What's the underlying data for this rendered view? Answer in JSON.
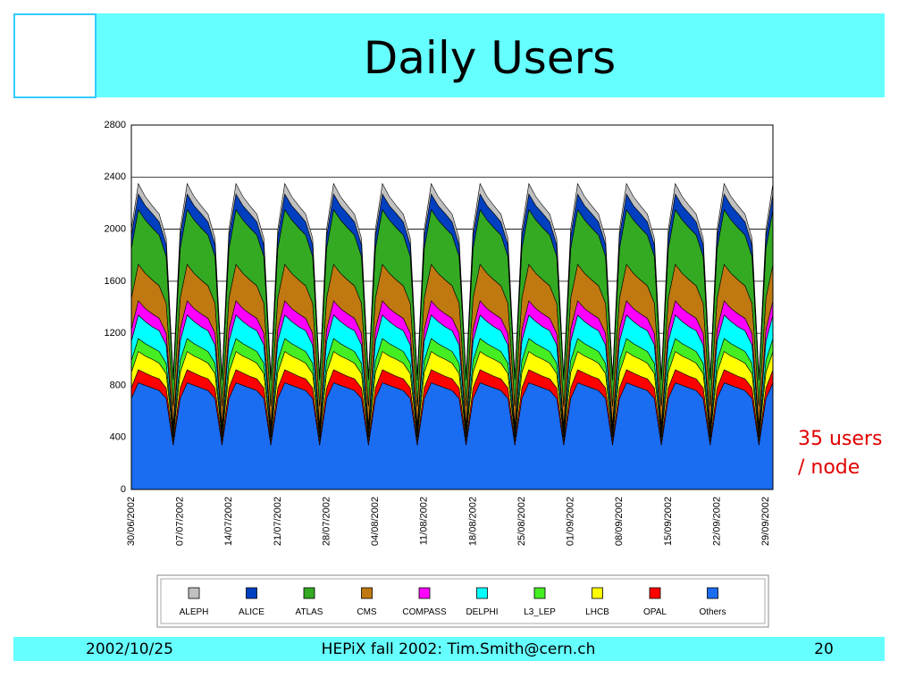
{
  "slide": {
    "title": "Daily Users",
    "annotation": [
      "35 users",
      "/ node"
    ],
    "footer": {
      "date": "2002/10/25",
      "event": "HEPiX fall 2002: Tim.Smith@cern.ch",
      "page": "20"
    }
  },
  "chart_data": {
    "type": "stacked_area",
    "categories": [
      "30/06/2002",
      null,
      null,
      null,
      null,
      null,
      null,
      "07/07/2002",
      null,
      null,
      null,
      null,
      null,
      null,
      "14/07/2002",
      null,
      null,
      null,
      null,
      null,
      null,
      "21/07/2002",
      null,
      null,
      null,
      null,
      null,
      null,
      "28/07/2002",
      null,
      null,
      null,
      null,
      null,
      null,
      "04/08/2002",
      null,
      null,
      null,
      null,
      null,
      null,
      "11/08/2002",
      null,
      null,
      null,
      null,
      null,
      null,
      "18/08/2002",
      null,
      null,
      null,
      null,
      null,
      null,
      "25/08/2002",
      null,
      null,
      null,
      null,
      null,
      null,
      "01/09/2002",
      null,
      null,
      null,
      null,
      null,
      null,
      "08/09/2002",
      null,
      null,
      null,
      null,
      null,
      null,
      "15/09/2002",
      null,
      null,
      null,
      null,
      null,
      null,
      "22/09/2002",
      null,
      null,
      null,
      null,
      null,
      null,
      "29/09/2002",
      null
    ],
    "ylim": [
      0,
      2800
    ],
    "yticks": [
      0,
      400,
      800,
      1200,
      1600,
      2000,
      2400,
      2800
    ],
    "grid": true,
    "series": [
      {
        "name": "ALEPH",
        "color": "#c0c0c0",
        "values": [
          50,
          80,
          70,
          60,
          60,
          50,
          10,
          50,
          80,
          70,
          60,
          60,
          50,
          10,
          50,
          80,
          70,
          60,
          60,
          50,
          10,
          50,
          80,
          70,
          60,
          60,
          50,
          10,
          50,
          80,
          70,
          60,
          60,
          50,
          10,
          50,
          80,
          70,
          60,
          60,
          50,
          10,
          50,
          80,
          70,
          60,
          60,
          50,
          10,
          50,
          80,
          70,
          60,
          60,
          50,
          10,
          50,
          80,
          70,
          60,
          60,
          50,
          10,
          50,
          80,
          70,
          60,
          60,
          50,
          10,
          50,
          80,
          70,
          60,
          60,
          50,
          10,
          50,
          80,
          70,
          60,
          60,
          50,
          10,
          50,
          80,
          70,
          60,
          60,
          50,
          10,
          50,
          80
        ]
      },
      {
        "name": "ALICE",
        "color": "#0040c0",
        "values": [
          100,
          120,
          110,
          110,
          100,
          90,
          20,
          100,
          120,
          110,
          110,
          100,
          90,
          20,
          100,
          120,
          110,
          110,
          100,
          90,
          20,
          100,
          120,
          110,
          110,
          100,
          90,
          20,
          100,
          120,
          110,
          110,
          100,
          90,
          20,
          100,
          120,
          110,
          110,
          100,
          90,
          20,
          100,
          120,
          110,
          110,
          100,
          90,
          20,
          100,
          120,
          110,
          110,
          100,
          90,
          20,
          100,
          120,
          110,
          110,
          100,
          90,
          20,
          100,
          120,
          110,
          110,
          100,
          90,
          20,
          100,
          120,
          110,
          110,
          100,
          90,
          20,
          100,
          120,
          110,
          110,
          100,
          90,
          20,
          100,
          120,
          110,
          110,
          100,
          90,
          20,
          100,
          120
        ]
      },
      {
        "name": "ATLAS",
        "color": "#33aa22",
        "values": [
          380,
          420,
          410,
          400,
          390,
          360,
          200,
          380,
          420,
          410,
          400,
          390,
          360,
          200,
          380,
          420,
          410,
          400,
          390,
          360,
          200,
          380,
          420,
          410,
          400,
          390,
          360,
          200,
          380,
          420,
          410,
          400,
          390,
          360,
          200,
          380,
          420,
          410,
          400,
          390,
          360,
          200,
          380,
          420,
          410,
          400,
          390,
          360,
          200,
          380,
          420,
          410,
          400,
          390,
          360,
          200,
          380,
          420,
          410,
          400,
          390,
          360,
          200,
          380,
          420,
          410,
          400,
          390,
          360,
          200,
          380,
          420,
          410,
          400,
          390,
          360,
          200,
          380,
          420,
          410,
          400,
          390,
          360,
          200,
          380,
          420,
          410,
          400,
          390,
          360,
          200,
          380,
          420
        ]
      },
      {
        "name": "CMS",
        "color": "#c07810",
        "values": [
          240,
          280,
          270,
          260,
          250,
          230,
          150,
          240,
          280,
          270,
          260,
          250,
          230,
          150,
          240,
          280,
          270,
          260,
          250,
          230,
          150,
          240,
          280,
          270,
          260,
          250,
          230,
          150,
          240,
          280,
          270,
          260,
          250,
          230,
          150,
          240,
          280,
          270,
          260,
          250,
          230,
          150,
          240,
          280,
          270,
          260,
          250,
          230,
          150,
          240,
          280,
          270,
          260,
          250,
          230,
          150,
          240,
          280,
          270,
          260,
          250,
          230,
          150,
          240,
          280,
          270,
          260,
          250,
          230,
          150,
          240,
          280,
          270,
          260,
          250,
          230,
          150,
          240,
          280,
          270,
          260,
          250,
          230,
          150,
          240,
          280,
          270,
          260,
          250,
          230,
          150,
          240,
          280
        ]
      },
      {
        "name": "COMPASS",
        "color": "#ff00ff",
        "values": [
          90,
          110,
          100,
          100,
          95,
          90,
          30,
          90,
          110,
          100,
          100,
          95,
          90,
          30,
          90,
          110,
          100,
          100,
          95,
          90,
          30,
          90,
          110,
          100,
          100,
          95,
          90,
          30,
          90,
          110,
          100,
          100,
          95,
          90,
          30,
          90,
          110,
          100,
          100,
          95,
          90,
          30,
          90,
          110,
          100,
          100,
          95,
          90,
          30,
          90,
          110,
          100,
          100,
          95,
          90,
          30,
          90,
          110,
          100,
          100,
          95,
          90,
          30,
          90,
          110,
          100,
          100,
          95,
          90,
          30,
          90,
          110,
          100,
          100,
          95,
          90,
          30,
          90,
          110,
          100,
          100,
          95,
          90,
          30,
          90,
          110,
          100,
          100,
          95,
          90,
          30,
          90,
          110
        ]
      },
      {
        "name": "DELPHI",
        "color": "#00ffff",
        "values": [
          150,
          180,
          170,
          160,
          160,
          140,
          30,
          150,
          180,
          170,
          160,
          160,
          140,
          30,
          150,
          180,
          170,
          160,
          160,
          140,
          30,
          150,
          180,
          170,
          160,
          160,
          140,
          30,
          150,
          180,
          170,
          160,
          160,
          140,
          30,
          150,
          180,
          170,
          160,
          160,
          140,
          30,
          150,
          180,
          170,
          160,
          160,
          140,
          30,
          150,
          180,
          170,
          160,
          160,
          140,
          30,
          150,
          180,
          170,
          160,
          160,
          140,
          30,
          150,
          180,
          170,
          160,
          160,
          140,
          30,
          150,
          180,
          170,
          160,
          160,
          140,
          30,
          150,
          180,
          170,
          160,
          160,
          140,
          30,
          150,
          180,
          170,
          160,
          160,
          140,
          30,
          150,
          180
        ]
      },
      {
        "name": "L3_LEP",
        "color": "#44ee22",
        "values": [
          90,
          100,
          95,
          90,
          90,
          80,
          30,
          90,
          100,
          95,
          90,
          90,
          80,
          30,
          90,
          100,
          95,
          90,
          90,
          80,
          30,
          90,
          100,
          95,
          90,
          90,
          80,
          30,
          90,
          100,
          95,
          90,
          90,
          80,
          30,
          90,
          100,
          95,
          90,
          90,
          80,
          30,
          90,
          100,
          95,
          90,
          90,
          80,
          30,
          90,
          100,
          95,
          90,
          90,
          80,
          30,
          90,
          100,
          95,
          90,
          90,
          80,
          30,
          90,
          100,
          95,
          90,
          90,
          80,
          30,
          90,
          100,
          95,
          90,
          90,
          80,
          30,
          90,
          100,
          95,
          90,
          90,
          80,
          30,
          90,
          100,
          95,
          90,
          90,
          80,
          30,
          90,
          100
        ]
      },
      {
        "name": "LHCB",
        "color": "#ffff00",
        "values": [
          120,
          140,
          130,
          130,
          120,
          110,
          30,
          120,
          140,
          130,
          130,
          120,
          110,
          30,
          120,
          140,
          130,
          130,
          120,
          110,
          30,
          120,
          140,
          130,
          130,
          120,
          110,
          30,
          120,
          140,
          130,
          130,
          120,
          110,
          30,
          120,
          140,
          130,
          130,
          120,
          110,
          30,
          120,
          140,
          130,
          130,
          120,
          110,
          30,
          120,
          140,
          130,
          130,
          120,
          110,
          30,
          120,
          140,
          130,
          130,
          120,
          110,
          30,
          120,
          140,
          130,
          130,
          120,
          110,
          30,
          120,
          140,
          130,
          130,
          120,
          110,
          30,
          120,
          140,
          130,
          130,
          120,
          110,
          30,
          120,
          140,
          130,
          130,
          120,
          110,
          30,
          120,
          140
        ]
      },
      {
        "name": "OPAL",
        "color": "#ff0000",
        "values": [
          80,
          100,
          95,
          90,
          90,
          80,
          30,
          80,
          100,
          95,
          90,
          90,
          80,
          30,
          80,
          100,
          95,
          90,
          90,
          80,
          30,
          80,
          100,
          95,
          90,
          90,
          80,
          30,
          80,
          100,
          95,
          90,
          90,
          80,
          30,
          80,
          100,
          95,
          90,
          90,
          80,
          30,
          80,
          100,
          95,
          90,
          90,
          80,
          30,
          80,
          100,
          95,
          90,
          90,
          80,
          30,
          80,
          100,
          95,
          90,
          90,
          80,
          30,
          80,
          100,
          95,
          90,
          90,
          80,
          30,
          80,
          100,
          95,
          90,
          90,
          80,
          30,
          80,
          100,
          95,
          90,
          90,
          80,
          30,
          80,
          100,
          95,
          90,
          90,
          80,
          30,
          80,
          100
        ]
      },
      {
        "name": "Others",
        "color": "#1a6cf0",
        "values": [
          700,
          820,
          800,
          780,
          760,
          700,
          340,
          700,
          820,
          800,
          780,
          760,
          700,
          340,
          700,
          820,
          800,
          780,
          760,
          700,
          340,
          700,
          820,
          800,
          780,
          760,
          700,
          340,
          700,
          820,
          800,
          780,
          760,
          700,
          340,
          700,
          820,
          800,
          780,
          760,
          700,
          340,
          700,
          820,
          800,
          780,
          760,
          700,
          340,
          700,
          820,
          800,
          780,
          760,
          700,
          340,
          700,
          820,
          800,
          780,
          760,
          700,
          340,
          700,
          820,
          800,
          780,
          760,
          700,
          340,
          700,
          820,
          800,
          780,
          760,
          700,
          340,
          700,
          820,
          800,
          780,
          760,
          700,
          340,
          700,
          820,
          800,
          780,
          760,
          700,
          340,
          700,
          820
        ]
      }
    ]
  }
}
